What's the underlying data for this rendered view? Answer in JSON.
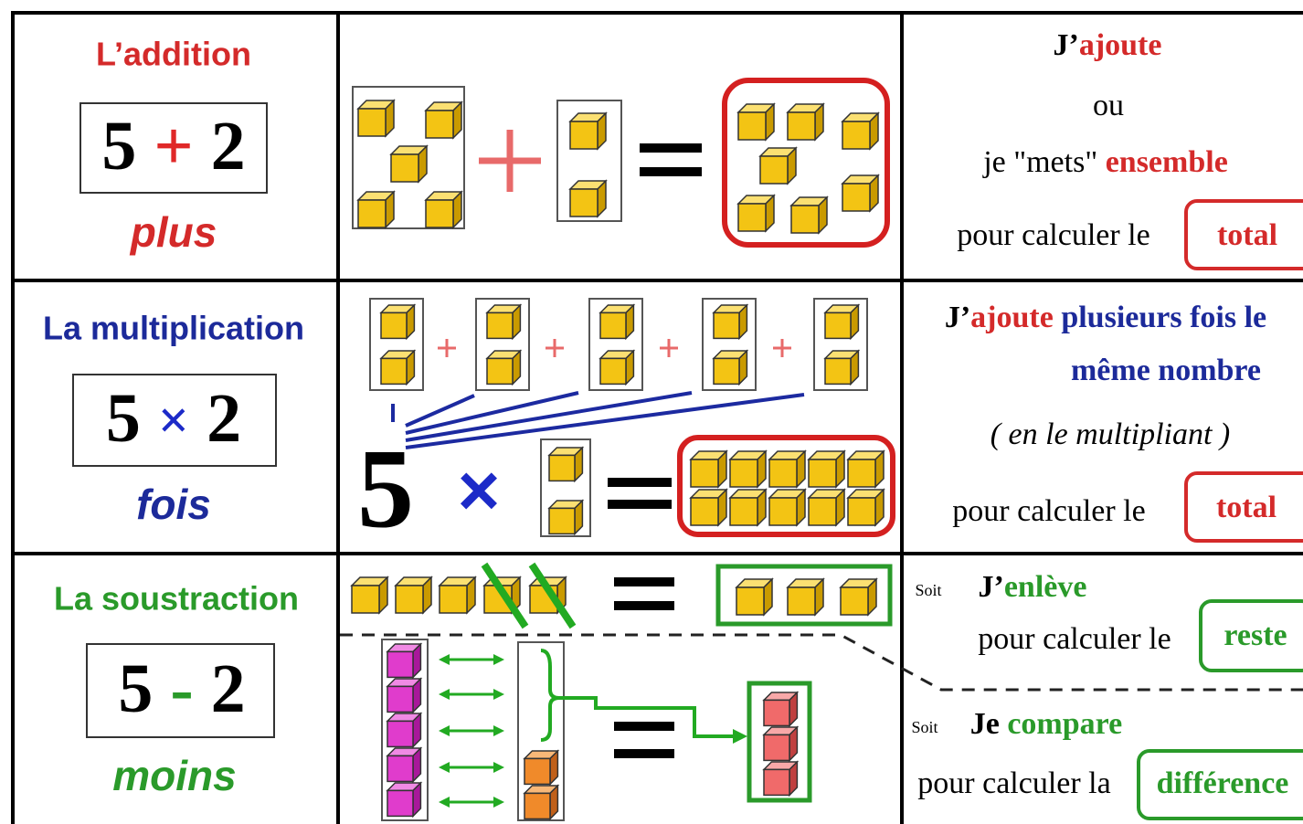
{
  "rows": [
    {
      "operation": "L’addition",
      "expression": {
        "left": "5",
        "operator": "+",
        "right": "2"
      },
      "word": "plus",
      "description": {
        "line1": {
          "prefix": "J’",
          "verb": "ajoute"
        },
        "line2": "ou",
        "line3": {
          "prefix": "je \"mets\"",
          "keyword": "ensemble"
        },
        "line4": "pour calculer le",
        "result": "total"
      }
    },
    {
      "operation": "La multiplication",
      "expression": {
        "left": "5",
        "operator": "×",
        "right": "2"
      },
      "word": "fois",
      "diagram": {
        "factor": "5",
        "operator": "×"
      },
      "description": {
        "line1": {
          "prefix": "J’",
          "verb": "ajoute",
          "rest": "plusieurs fois le"
        },
        "line2": "même nombre",
        "line3": "( en le multipliant )",
        "line4": "pour calculer le",
        "result": "total"
      }
    },
    {
      "operation": "La soustraction",
      "expression": {
        "left": "5",
        "operator": "-",
        "right": "2"
      },
      "word": "moins",
      "description": {
        "first": {
          "soit": "Soit",
          "prefix": "J’",
          "verb": "enlève",
          "line2": "pour calculer le",
          "result": "reste"
        },
        "second": {
          "soit": "Soit",
          "prefix": "Je",
          "verb": "compare",
          "line2": "pour calculer la",
          "result": "différence"
        }
      }
    }
  ]
}
